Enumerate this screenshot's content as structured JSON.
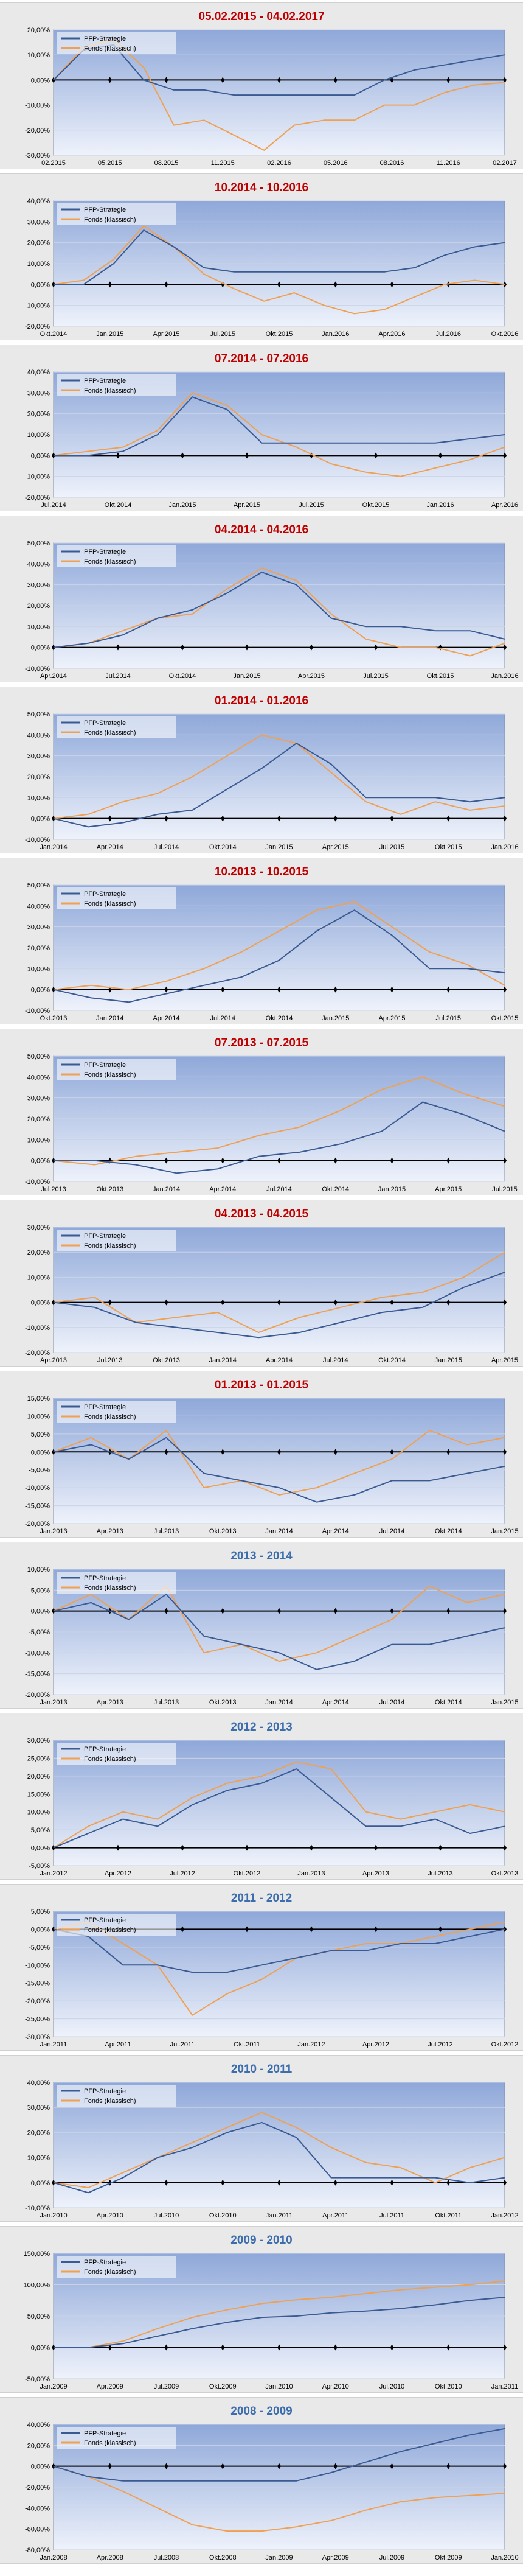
{
  "colors": {
    "strategy": "#3a5a92",
    "fund": "#f0a050",
    "title_recent": "#c00000",
    "title_year": "#3c6dad"
  },
  "legend": {
    "strategy": "PFP-Strategie",
    "fund": "Fonds (klassisch)"
  },
  "chart_data": [
    {
      "type": "line",
      "title": "05.02.2015 - 04.02.2017",
      "title_color": "#c00000",
      "yticks": [
        "20,00%",
        "10,00%",
        "0,00%",
        "-10,00%",
        "-20,00%",
        "-30,00%"
      ],
      "ylim": [
        -30,
        20
      ],
      "xticks": [
        "02.2015",
        "05.2015",
        "08.2015",
        "11.2015",
        "02.2016",
        "05.2016",
        "08.2016",
        "11.2016",
        "02.2017"
      ],
      "series": [
        {
          "name": "PFP-Strategie",
          "values": [
            0,
            12,
            14,
            0,
            -4,
            -4,
            -6,
            -6,
            -6,
            -6,
            -6,
            0,
            4,
            6,
            8,
            10
          ]
        },
        {
          "name": "Fonds (klassisch)",
          "values": [
            0,
            13,
            16,
            5,
            -18,
            -16,
            -22,
            -28,
            -18,
            -16,
            -16,
            -10,
            -10,
            -5,
            -2,
            -1
          ]
        }
      ]
    },
    {
      "type": "line",
      "title": "10.2014 - 10.2016",
      "title_color": "#c00000",
      "yticks": [
        "40,00%",
        "30,00%",
        "20,00%",
        "10,00%",
        "0,00%",
        "-10,00%",
        "-20,00%"
      ],
      "ylim": [
        -20,
        40
      ],
      "xticks": [
        "Okt.2014",
        "Jan.2015",
        "Apr.2015",
        "Jul.2015",
        "Okt.2015",
        "Jan.2016",
        "Apr.2016",
        "Jul.2016",
        "Okt.2016"
      ],
      "series": [
        {
          "name": "PFP-Strategie",
          "values": [
            0,
            0,
            10,
            26,
            18,
            8,
            6,
            6,
            6,
            6,
            6,
            6,
            8,
            14,
            18,
            20
          ]
        },
        {
          "name": "Fonds (klassisch)",
          "values": [
            0,
            2,
            12,
            28,
            18,
            5,
            -2,
            -8,
            -4,
            -10,
            -14,
            -12,
            -6,
            0,
            2,
            0
          ]
        }
      ]
    },
    {
      "type": "line",
      "title": "07.2014 - 07.2016",
      "title_color": "#c00000",
      "yticks": [
        "40,00%",
        "30,00%",
        "20,00%",
        "10,00%",
        "0,00%",
        "-10,00%",
        "-20,00%"
      ],
      "ylim": [
        -20,
        40
      ],
      "xticks": [
        "Jul.2014",
        "Okt.2014",
        "Jan.2015",
        "Apr.2015",
        "Jul.2015",
        "Okt.2015",
        "Jan.2016",
        "Apr.2016"
      ],
      "series": [
        {
          "name": "PFP-Strategie",
          "values": [
            0,
            0,
            2,
            10,
            28,
            22,
            6,
            6,
            6,
            6,
            6,
            6,
            8,
            10
          ]
        },
        {
          "name": "Fonds (klassisch)",
          "values": [
            0,
            2,
            4,
            12,
            30,
            24,
            10,
            4,
            -4,
            -8,
            -10,
            -6,
            -2,
            4
          ]
        }
      ]
    },
    {
      "type": "line",
      "title": "04.2014 - 04.2016",
      "title_color": "#c00000",
      "yticks": [
        "50,00%",
        "40,00%",
        "30,00%",
        "20,00%",
        "10,00%",
        "0,00%",
        "-10,00%"
      ],
      "ylim": [
        -10,
        50
      ],
      "xticks": [
        "Apr.2014",
        "Jul.2014",
        "Okt.2014",
        "Jan.2015",
        "Apr.2015",
        "Jul.2015",
        "Okt.2015",
        "Jan.2016"
      ],
      "series": [
        {
          "name": "PFP-Strategie",
          "values": [
            0,
            2,
            6,
            14,
            18,
            26,
            36,
            30,
            14,
            10,
            10,
            8,
            8,
            4
          ]
        },
        {
          "name": "Fonds (klassisch)",
          "values": [
            0,
            2,
            8,
            14,
            16,
            28,
            38,
            32,
            16,
            4,
            0,
            0,
            -4,
            2
          ]
        }
      ]
    },
    {
      "type": "line",
      "title": "01.2014 - 01.2016",
      "title_color": "#c00000",
      "yticks": [
        "50,00%",
        "40,00%",
        "30,00%",
        "20,00%",
        "10,00%",
        "0,00%",
        "-10,00%"
      ],
      "ylim": [
        -10,
        50
      ],
      "xticks": [
        "Jan.2014",
        "Apr.2014",
        "Jul.2014",
        "Okt.2014",
        "Jan.2015",
        "Apr.2015",
        "Jul.2015",
        "Okt.2015",
        "Jan.2016"
      ],
      "series": [
        {
          "name": "PFP-Strategie",
          "values": [
            0,
            -4,
            -2,
            2,
            4,
            14,
            24,
            36,
            26,
            10,
            10,
            10,
            8,
            10
          ]
        },
        {
          "name": "Fonds (klassisch)",
          "values": [
            0,
            2,
            8,
            12,
            20,
            30,
            40,
            36,
            22,
            8,
            2,
            8,
            4,
            6
          ]
        }
      ]
    },
    {
      "type": "line",
      "title": "10.2013 - 10.2015",
      "title_color": "#c00000",
      "yticks": [
        "50,00%",
        "40,00%",
        "30,00%",
        "20,00%",
        "10,00%",
        "0,00%",
        "-10,00%"
      ],
      "ylim": [
        -10,
        50
      ],
      "xticks": [
        "Okt.2013",
        "Jan.2014",
        "Apr.2014",
        "Jul.2014",
        "Okt.2014",
        "Jan.2015",
        "Apr.2015",
        "Jul.2015",
        "Okt.2015"
      ],
      "series": [
        {
          "name": "PFP-Strategie",
          "values": [
            0,
            -4,
            -6,
            -2,
            2,
            6,
            14,
            28,
            38,
            26,
            10,
            10,
            8
          ]
        },
        {
          "name": "Fonds (klassisch)",
          "values": [
            0,
            2,
            0,
            4,
            10,
            18,
            28,
            38,
            42,
            30,
            18,
            12,
            2
          ]
        }
      ]
    },
    {
      "type": "line",
      "title": "07.2013 - 07.2015",
      "title_color": "#c00000",
      "yticks": [
        "50,00%",
        "40,00%",
        "30,00%",
        "20,00%",
        "10,00%",
        "0,00%",
        "-10,00%"
      ],
      "ylim": [
        -10,
        50
      ],
      "xticks": [
        "Jul.2013",
        "Okt.2013",
        "Jan.2014",
        "Apr.2014",
        "Jul.2014",
        "Okt.2014",
        "Jan.2015",
        "Apr.2015",
        "Jul.2015"
      ],
      "series": [
        {
          "name": "PFP-Strategie",
          "values": [
            0,
            0,
            -2,
            -6,
            -4,
            2,
            4,
            8,
            14,
            28,
            22,
            14
          ]
        },
        {
          "name": "Fonds (klassisch)",
          "values": [
            0,
            -2,
            2,
            4,
            6,
            12,
            16,
            24,
            34,
            40,
            32,
            26
          ]
        }
      ]
    },
    {
      "type": "line",
      "title": "04.2013 - 04.2015",
      "title_color": "#c00000",
      "yticks": [
        "30,00%",
        "20,00%",
        "10,00%",
        "0,00%",
        "-10,00%",
        "-20,00%"
      ],
      "ylim": [
        -20,
        30
      ],
      "xticks": [
        "Apr.2013",
        "Jul.2013",
        "Okt.2013",
        "Jan.2014",
        "Apr.2014",
        "Jul.2014",
        "Okt.2014",
        "Jan.2015",
        "Apr.2015"
      ],
      "series": [
        {
          "name": "PFP-Strategie",
          "values": [
            0,
            -2,
            -8,
            -10,
            -12,
            -14,
            -12,
            -8,
            -4,
            -2,
            6,
            12
          ]
        },
        {
          "name": "Fonds (klassisch)",
          "values": [
            0,
            2,
            -8,
            -6,
            -4,
            -12,
            -6,
            -2,
            2,
            4,
            10,
            20
          ]
        }
      ]
    },
    {
      "type": "line",
      "title": "01.2013 - 01.2015",
      "title_color": "#c00000",
      "yticks": [
        "15,00%",
        "10,00%",
        "5,00%",
        "0,00%",
        "-5,00%",
        "-10,00%",
        "-15,00%",
        "-20,00%"
      ],
      "ylim": [
        -20,
        15
      ],
      "xticks": [
        "Jan.2013",
        "Apr.2013",
        "Jul.2013",
        "Okt.2013",
        "Jan.2014",
        "Apr.2014",
        "Jul.2014",
        "Okt.2014",
        "Jan.2015"
      ],
      "series": [
        {
          "name": "PFP-Strategie",
          "values": [
            0,
            2,
            -2,
            4,
            -6,
            -8,
            -10,
            -14,
            -12,
            -8,
            -8,
            -6,
            -4
          ]
        },
        {
          "name": "Fonds (klassisch)",
          "values": [
            0,
            4,
            -2,
            6,
            -10,
            -8,
            -12,
            -10,
            -6,
            -2,
            6,
            2,
            4
          ]
        }
      ]
    },
    {
      "type": "line",
      "title": "2013 - 2014",
      "title_color": "#3c6dad",
      "yticks": [
        "10,00%",
        "5,00%",
        "0,00%",
        "-5,00%",
        "-10,00%",
        "-15,00%",
        "-20,00%"
      ],
      "ylim": [
        -20,
        10
      ],
      "xticks": [
        "Jan.2013",
        "Apr.2013",
        "Jul.2013",
        "Okt.2013",
        "Jan.2014",
        "Apr.2014",
        "Jul.2014",
        "Okt.2014",
        "Jan.2015"
      ],
      "series": [
        {
          "name": "PFP-Strategie",
          "values": [
            0,
            2,
            -2,
            4,
            -6,
            -8,
            -10,
            -14,
            -12,
            -8,
            -8,
            -6,
            -4
          ]
        },
        {
          "name": "Fonds (klassisch)",
          "values": [
            0,
            4,
            -2,
            6,
            -10,
            -8,
            -12,
            -10,
            -6,
            -2,
            6,
            2,
            4
          ]
        }
      ]
    },
    {
      "type": "line",
      "title": "2012 - 2013",
      "title_color": "#3c6dad",
      "yticks": [
        "30,00%",
        "25,00%",
        "20,00%",
        "15,00%",
        "10,00%",
        "5,00%",
        "0,00%",
        "-5,00%"
      ],
      "ylim": [
        -5,
        30
      ],
      "xticks": [
        "Jan.2012",
        "Apr.2012",
        "Jul.2012",
        "Okt.2012",
        "Jan.2013",
        "Apr.2013",
        "Jul.2013",
        "Okt.2013"
      ],
      "series": [
        {
          "name": "PFP-Strategie",
          "values": [
            0,
            4,
            8,
            6,
            12,
            16,
            18,
            22,
            14,
            6,
            6,
            8,
            4,
            6
          ]
        },
        {
          "name": "Fonds (klassisch)",
          "values": [
            0,
            6,
            10,
            8,
            14,
            18,
            20,
            24,
            22,
            10,
            8,
            10,
            12,
            10
          ]
        }
      ]
    },
    {
      "type": "line",
      "title": "2011 - 2012",
      "title_color": "#3c6dad",
      "yticks": [
        "5,00%",
        "0,00%",
        "-5,00%",
        "-10,00%",
        "-15,00%",
        "-20,00%",
        "-25,00%",
        "-30,00%"
      ],
      "ylim": [
        -30,
        5
      ],
      "xticks": [
        "Jan.2011",
        "Apr.2011",
        "Jul.2011",
        "Okt.2011",
        "Jan.2012",
        "Apr.2012",
        "Jul.2012",
        "Okt.2012"
      ],
      "series": [
        {
          "name": "PFP-Strategie",
          "values": [
            0,
            -2,
            -10,
            -10,
            -12,
            -12,
            -10,
            -8,
            -6,
            -6,
            -4,
            -4,
            -2,
            0
          ]
        },
        {
          "name": "Fonds (klassisch)",
          "values": [
            0,
            2,
            -4,
            -10,
            -24,
            -18,
            -14,
            -8,
            -6,
            -4,
            -4,
            -2,
            0,
            2
          ]
        }
      ]
    },
    {
      "type": "line",
      "title": "2010 - 2011",
      "title_color": "#3c6dad",
      "yticks": [
        "40,00%",
        "30,00%",
        "20,00%",
        "10,00%",
        "0,00%",
        "-10,00%"
      ],
      "ylim": [
        -10,
        40
      ],
      "xticks": [
        "Jan.2010",
        "Apr.2010",
        "Jul.2010",
        "Okt.2010",
        "Jan.2011",
        "Apr.2011",
        "Jul.2011",
        "Okt.2011",
        "Jan.2012"
      ],
      "series": [
        {
          "name": "PFP-Strategie",
          "values": [
            0,
            -4,
            2,
            10,
            14,
            20,
            24,
            18,
            2,
            2,
            2,
            2,
            0,
            2
          ]
        },
        {
          "name": "Fonds (klassisch)",
          "values": [
            0,
            -2,
            4,
            10,
            16,
            22,
            28,
            22,
            14,
            8,
            6,
            0,
            6,
            10
          ]
        }
      ]
    },
    {
      "type": "line",
      "title": "2009 - 2010",
      "title_color": "#3c6dad",
      "yticks": [
        "150,00%",
        "100,00%",
        "50,00%",
        "0,00%",
        "-50,00%"
      ],
      "ylim": [
        -50,
        150
      ],
      "xticks": [
        "Jan.2009",
        "Apr.2009",
        "Jul.2009",
        "Okt.2009",
        "Jan.2010",
        "Apr.2010",
        "Jul.2010",
        "Okt.2010",
        "Jan.2011"
      ],
      "series": [
        {
          "name": "PFP-Strategie",
          "values": [
            0,
            0,
            6,
            18,
            30,
            40,
            48,
            50,
            55,
            58,
            62,
            68,
            75,
            80
          ]
        },
        {
          "name": "Fonds (klassisch)",
          "values": [
            0,
            0,
            10,
            30,
            48,
            60,
            70,
            76,
            80,
            86,
            92,
            96,
            100,
            106
          ]
        }
      ]
    },
    {
      "type": "line",
      "title": "2008 - 2009",
      "title_color": "#3c6dad",
      "yticks": [
        "40,00%",
        "20,00%",
        "0,00%",
        "-20,00%",
        "-40,00%",
        "-60,00%",
        "-80,00%"
      ],
      "ylim": [
        -80,
        40
      ],
      "xticks": [
        "Jan.2008",
        "Apr.2008",
        "Jul.2008",
        "Okt.2008",
        "Jan.2009",
        "Apr.2009",
        "Jul.2009",
        "Okt.2009",
        "Jan.2010"
      ],
      "series": [
        {
          "name": "PFP-Strategie",
          "values": [
            0,
            -10,
            -14,
            -14,
            -14,
            -14,
            -14,
            -14,
            -6,
            4,
            14,
            22,
            30,
            36
          ]
        },
        {
          "name": "Fonds (klassisch)",
          "values": [
            0,
            -10,
            -24,
            -40,
            -56,
            -62,
            -62,
            -58,
            -52,
            -42,
            -34,
            -30,
            -28,
            -26
          ]
        }
      ]
    }
  ]
}
